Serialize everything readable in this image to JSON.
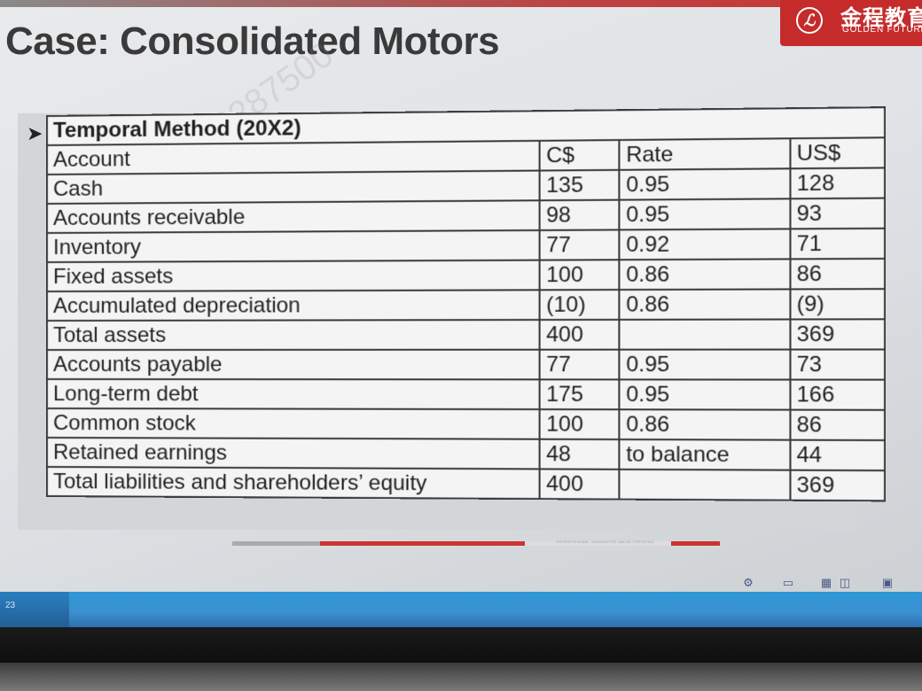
{
  "slide": {
    "title": "Case: Consolidated Motors",
    "watermark": "3287500",
    "logo": {
      "cn_text": "金程教育",
      "en_text": "GOLDEN FUTURE",
      "mark": "ℒ"
    }
  },
  "table": {
    "title": "Temporal Method (20X2)",
    "headers": {
      "account": "Account",
      "cad": "C$",
      "rate": "Rate",
      "usd": "US$"
    },
    "rows": [
      {
        "account": "Cash",
        "cad": "135",
        "rate": "0.95",
        "usd": "128"
      },
      {
        "account": "Accounts receivable",
        "cad": "98",
        "rate": "0.95",
        "usd": "93"
      },
      {
        "account": "Inventory",
        "cad": "77",
        "rate": "0.92",
        "usd": "71"
      },
      {
        "account": "Fixed assets",
        "cad": "100",
        "rate": "0.86",
        "usd": "86"
      },
      {
        "account": "Accumulated depreciation",
        "cad": "(10)",
        "rate": "0.86",
        "usd": "(9)"
      },
      {
        "account": "Total assets",
        "cad": "400",
        "rate": "",
        "usd": "369"
      },
      {
        "account": "Accounts payable",
        "cad": "77",
        "rate": "0.95",
        "usd": "73"
      },
      {
        "account": "Long-term debt",
        "cad": "175",
        "rate": "0.95",
        "usd": "166"
      },
      {
        "account": "Common stock",
        "cad": "100",
        "rate": "0.86",
        "usd": "86"
      },
      {
        "account": "Retained earnings",
        "cad": "48",
        "rate": "to balance",
        "usd": "44"
      },
      {
        "account": "Total liabilities and shareholders’ equity",
        "cad": "400",
        "rate": "",
        "usd": "369"
      }
    ]
  },
  "footer_rule_text": "PROFESSIONAL  INNOVATIVE  VALUE CREATING",
  "statusbar": {
    "icons": [
      "settings-icon",
      "normal-view-icon",
      "slide-sorter-icon",
      "reading-view-icon",
      "slideshow-icon"
    ]
  },
  "taskbar": {
    "slide_number": "23"
  },
  "colors": {
    "brand_red": "#c62b2b",
    "taskbar_blue": "#2f97d6"
  }
}
